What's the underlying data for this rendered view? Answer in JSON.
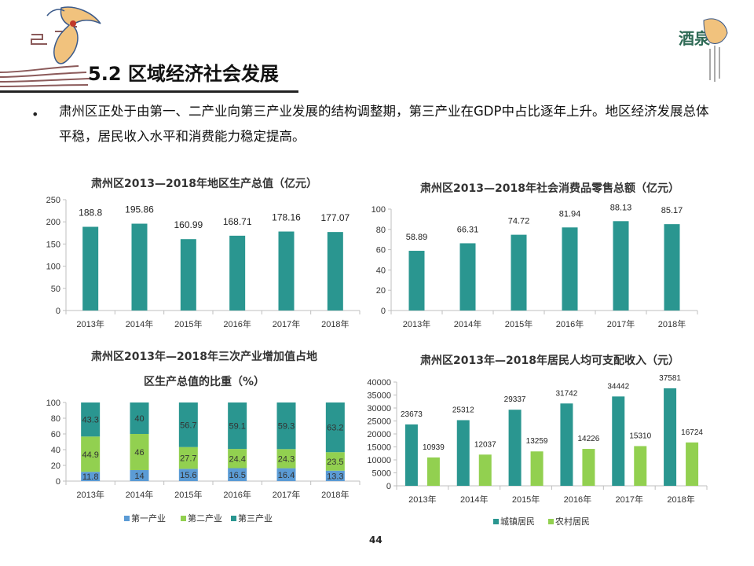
{
  "slide": {
    "title": "5.2 区域经济社会发展",
    "bullet": "肃州区正处于由第一、二产业向第三产业发展的结构调整期，第三产业在GDP中占比逐年上升。地区经济发展总体平稳，居民收入水平和消费能力稳定提高。",
    "page_number": "44",
    "logo_text": "酒泉",
    "colors": {
      "teal": "#2a9690",
      "green": "#92d050",
      "blue": "#5b9bd5"
    }
  },
  "chart_data": [
    {
      "type": "bar",
      "title": "肃州区2013—2018年地区生产总值（亿元）",
      "categories": [
        "2013年",
        "2014年",
        "2015年",
        "2016年",
        "2017年",
        "2018年"
      ],
      "values": [
        188.8,
        195.86,
        160.99,
        168.71,
        178.16,
        177.07
      ],
      "value_labels": [
        "188.8",
        "195.86",
        "160.99",
        "168.71",
        "178.16",
        "177.07"
      ],
      "ylim": [
        0,
        250
      ],
      "yticks": [
        "0",
        "50",
        "100",
        "150",
        "200",
        "250"
      ],
      "color": "#2a9690"
    },
    {
      "type": "bar",
      "title": "肃州区2013—2018年社会消费品零售总额（亿元）",
      "categories": [
        "2013年",
        "2014年",
        "2015年",
        "2016年",
        "2017年",
        "2018年"
      ],
      "values": [
        58.89,
        66.31,
        74.72,
        81.94,
        88.13,
        85.17
      ],
      "value_labels": [
        "58.89",
        "66.31",
        "74.72",
        "81.94",
        "88.13",
        "85.17"
      ],
      "ylim": [
        0,
        100
      ],
      "yticks": [
        "0",
        "20",
        "40",
        "60",
        "80",
        "100"
      ],
      "color": "#2a9690"
    },
    {
      "type": "bar",
      "stacked": true,
      "title_lines": [
        "肃州区2013年—2018年三次产业增加值占地",
        "区生产总值的比重（%）"
      ],
      "categories": [
        "2013年",
        "2014年",
        "2015年",
        "2016年",
        "2017年",
        "2018年"
      ],
      "series": [
        {
          "name": "第一产业",
          "values": [
            11.8,
            14,
            15.6,
            16.5,
            16.4,
            13.3
          ],
          "labels": [
            "11.8",
            "14",
            "15.6",
            "16.5",
            "16.4",
            "13.3"
          ],
          "color": "#5b9bd5"
        },
        {
          "name": "第二产业",
          "values": [
            44.9,
            46,
            27.7,
            24.4,
            24.3,
            23.5
          ],
          "labels": [
            "44.9",
            "46",
            "27.7",
            "24.4",
            "24.3",
            "23.5"
          ],
          "color": "#92d050"
        },
        {
          "name": "第三产业",
          "values": [
            43.3,
            40,
            56.7,
            59.1,
            59.3,
            63.2
          ],
          "labels": [
            "43.3",
            "40",
            "56.7",
            "59.1",
            "59.3",
            "63.2"
          ],
          "color": "#2a9690"
        }
      ],
      "ylim": [
        0,
        100
      ],
      "yticks": [
        "0",
        "20",
        "40",
        "60",
        "80",
        "100"
      ],
      "legend": "bottom"
    },
    {
      "type": "bar",
      "title": "肃州区2013年—2018年居民人均可支配收入（元）",
      "categories": [
        "2013年",
        "2014年",
        "2015年",
        "2016年",
        "2017年",
        "2018年"
      ],
      "series": [
        {
          "name": "城镇居民",
          "values": [
            23673,
            25312,
            29337,
            31742,
            34442,
            37581
          ],
          "labels": [
            "23673",
            "25312",
            "29337",
            "31742",
            "34442",
            "37581"
          ],
          "color": "#2a9690"
        },
        {
          "name": "农村居民",
          "values": [
            10939,
            12037,
            13259,
            14226,
            15310,
            16724
          ],
          "labels": [
            "10939",
            "12037",
            "13259",
            "14226",
            "15310",
            "16724"
          ],
          "color": "#92d050"
        }
      ],
      "ylim": [
        0,
        40000
      ],
      "yticks": [
        "0",
        "5000",
        "10000",
        "15000",
        "20000",
        "25000",
        "30000",
        "35000",
        "40000"
      ],
      "legend": "bottom"
    }
  ]
}
